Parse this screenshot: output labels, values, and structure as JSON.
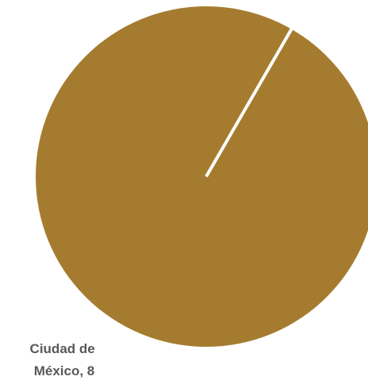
{
  "chart_data": {
    "type": "pie",
    "slices": [
      {
        "label": "Ciudad de México",
        "value": 8,
        "data_label_line1": "Ciudad de",
        "data_label_line2": "México, 8",
        "color": "#a57c2f"
      }
    ],
    "legend": "none",
    "separator_color": "#ffffff"
  }
}
